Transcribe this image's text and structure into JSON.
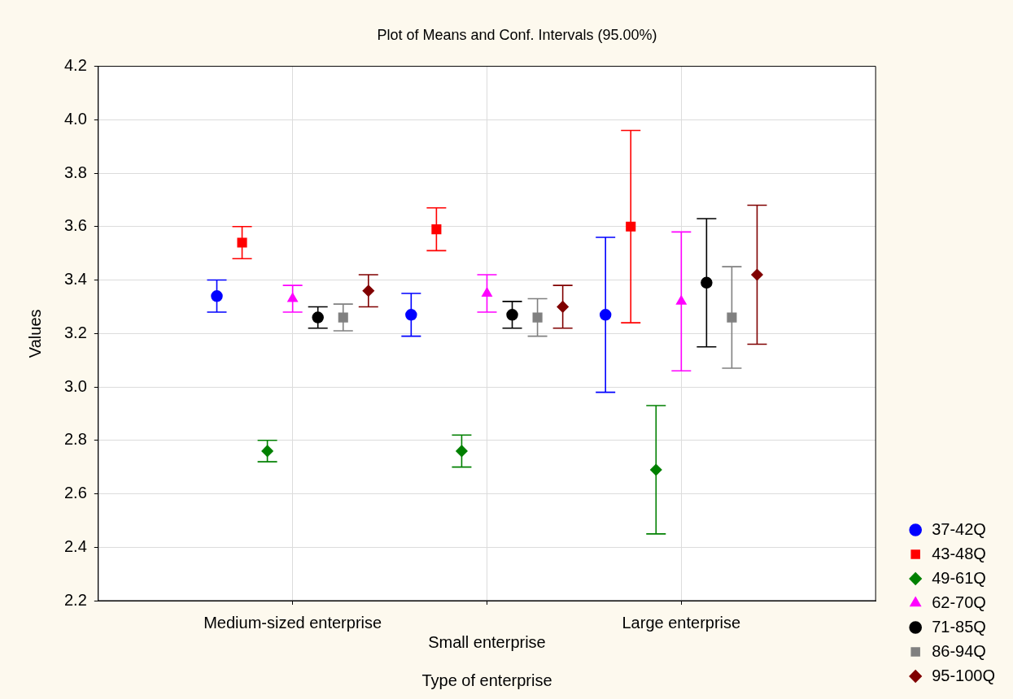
{
  "chart_data": {
    "type": "scatter",
    "title": "Plot of Means and Conf. Intervals (95.00%)",
    "xlabel": "Type of enterprise",
    "ylabel": "Values",
    "categories": [
      "Medium-sized enterprise",
      "Small enterprise",
      "Large enterprise"
    ],
    "series": [
      {
        "name": "37-42Q",
        "color": "#0000ff",
        "marker": "circle",
        "values": [
          3.34,
          3.27,
          3.27
        ],
        "errors": [
          0.06,
          0.08,
          0.29
        ]
      },
      {
        "name": "43-48Q",
        "color": "#ff0000",
        "marker": "square",
        "values": [
          3.54,
          3.59,
          3.6
        ],
        "errors": [
          0.06,
          0.08,
          0.36
        ]
      },
      {
        "name": "49-61Q",
        "color": "#008000",
        "marker": "diamond",
        "values": [
          2.76,
          2.76,
          2.69
        ],
        "errors": [
          0.04,
          0.06,
          0.24
        ]
      },
      {
        "name": "62-70Q",
        "color": "#ff00ff",
        "marker": "triangle",
        "values": [
          3.33,
          3.35,
          3.32
        ],
        "errors": [
          0.05,
          0.07,
          0.26
        ]
      },
      {
        "name": "71-85Q",
        "color": "#000000",
        "marker": "circle",
        "values": [
          3.26,
          3.27,
          3.39
        ],
        "errors": [
          0.04,
          0.05,
          0.24
        ]
      },
      {
        "name": "86-94Q",
        "color": "#808080",
        "marker": "square",
        "values": [
          3.26,
          3.26,
          3.26
        ],
        "errors": [
          0.05,
          0.07,
          0.19
        ]
      },
      {
        "name": "95-100Q",
        "color": "#800000",
        "marker": "diamond",
        "values": [
          3.36,
          3.3,
          3.42
        ],
        "errors": [
          0.06,
          0.08,
          0.26
        ]
      }
    ],
    "ylim": [
      2.2,
      4.2
    ],
    "yticks": [
      2.2,
      2.4,
      2.6,
      2.8,
      {
        "value": 3,
        "label": "3.0"
      },
      3.2,
      3.4,
      3.6,
      3.8,
      {
        "value": 4,
        "label": "4.0"
      },
      4.2
    ],
    "grid": true,
    "legend": "bottom right"
  }
}
